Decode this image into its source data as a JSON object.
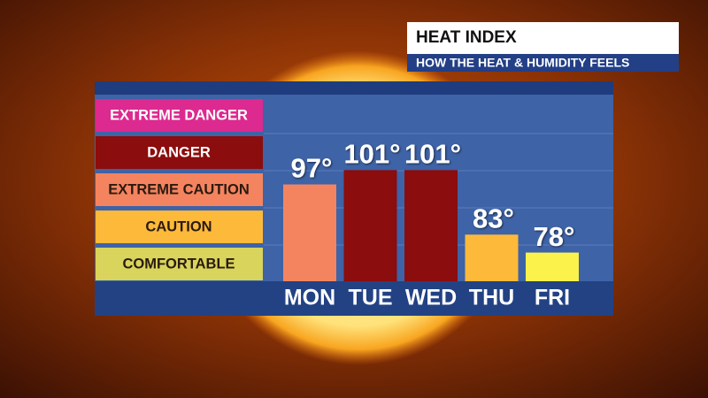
{
  "chart_data": {
    "type": "bar",
    "title": "HEAT INDEX",
    "subtitle": "HOW THE HEAT & HUMIDITY FEELS",
    "categories": [
      "MON",
      "TUE",
      "WED",
      "THU",
      "FRI"
    ],
    "values": [
      97,
      101,
      101,
      83,
      78
    ],
    "value_labels": [
      "97°",
      "101°",
      "101°",
      "83°",
      "78°"
    ],
    "colors": [
      "#f4845f",
      "#8b0d0d",
      "#8b0d0d",
      "#fdb93a",
      "#fbf24c"
    ],
    "ylim": [
      70,
      125
    ],
    "legend": [
      {
        "name": "EXTREME DANGER",
        "color": "#dc2a90"
      },
      {
        "name": "DANGER",
        "color": "#8b0d0d"
      },
      {
        "name": "EXTREME CAUTION",
        "color": "#f4845f"
      },
      {
        "name": "CAUTION",
        "color": "#fdb93a"
      },
      {
        "name": "COMFORTABLE",
        "color": "#d8d45c"
      }
    ]
  }
}
